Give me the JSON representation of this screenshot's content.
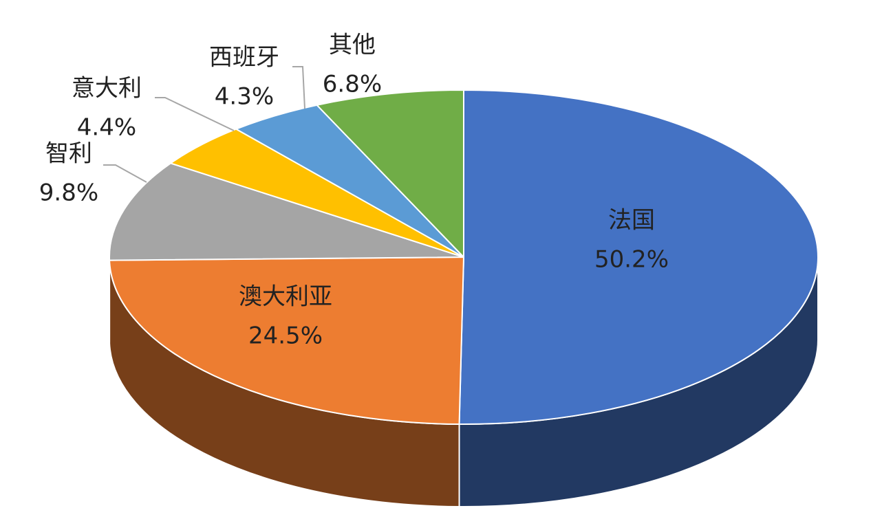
{
  "chart_data": {
    "type": "pie",
    "categories": [
      "法国",
      "澳大利亚",
      "智利",
      "意大利",
      "西班牙",
      "其他"
    ],
    "values": [
      50.2,
      24.5,
      9.8,
      4.4,
      4.3,
      6.8
    ],
    "value_labels": [
      "50.2%",
      "24.5%",
      "9.8%",
      "4.4%",
      "4.3%",
      "6.8%"
    ],
    "colors": [
      "#4472c4",
      "#ed7d31",
      "#a5a5a5",
      "#ffc000",
      "#5b9bd5",
      "#70ad47"
    ]
  }
}
